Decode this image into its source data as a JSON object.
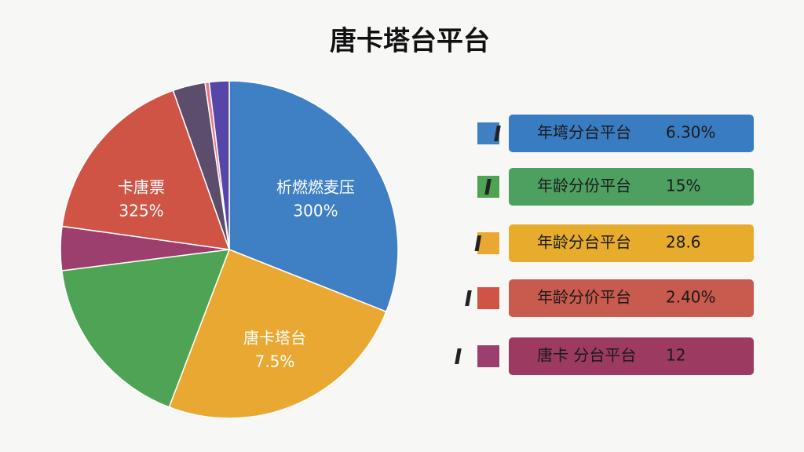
{
  "chart_data": {
    "type": "pie",
    "title": "唐卡塔台平台",
    "values": [
      31,
      24.8,
      17.2,
      4.2,
      17.4,
      3.1,
      0.4,
      1.9
    ],
    "colors": [
      "#3f7fc4",
      "#e9a832",
      "#4ea454",
      "#9c3f6f",
      "#cf5446",
      "#5b4d6b",
      "#e07a8a",
      "#5646a8"
    ],
    "annotations": [
      {
        "text": "析燃燃麦压",
        "value_text": "300%"
      },
      {
        "text": "唐卡塔台",
        "value_text": "7.5%"
      },
      {
        "text": "卡唐票",
        "value_text": "325%"
      }
    ],
    "legend": [
      {
        "color": "#3a7cc2",
        "text": "年塆分台平台",
        "value_text": "6.30%"
      },
      {
        "color": "#4ea060",
        "text": "年龄分份平台",
        "value_text": "15%"
      },
      {
        "color": "#e7ac2c",
        "text": "年龄分台平台",
        "value_text": "28.6"
      },
      {
        "color": "#c95a4e",
        "text": "年龄分价平台",
        "value_text": "2.40%"
      },
      {
        "color": "#9c3a62",
        "text": "唐卡 分台平台",
        "value_text": "12"
      }
    ]
  }
}
